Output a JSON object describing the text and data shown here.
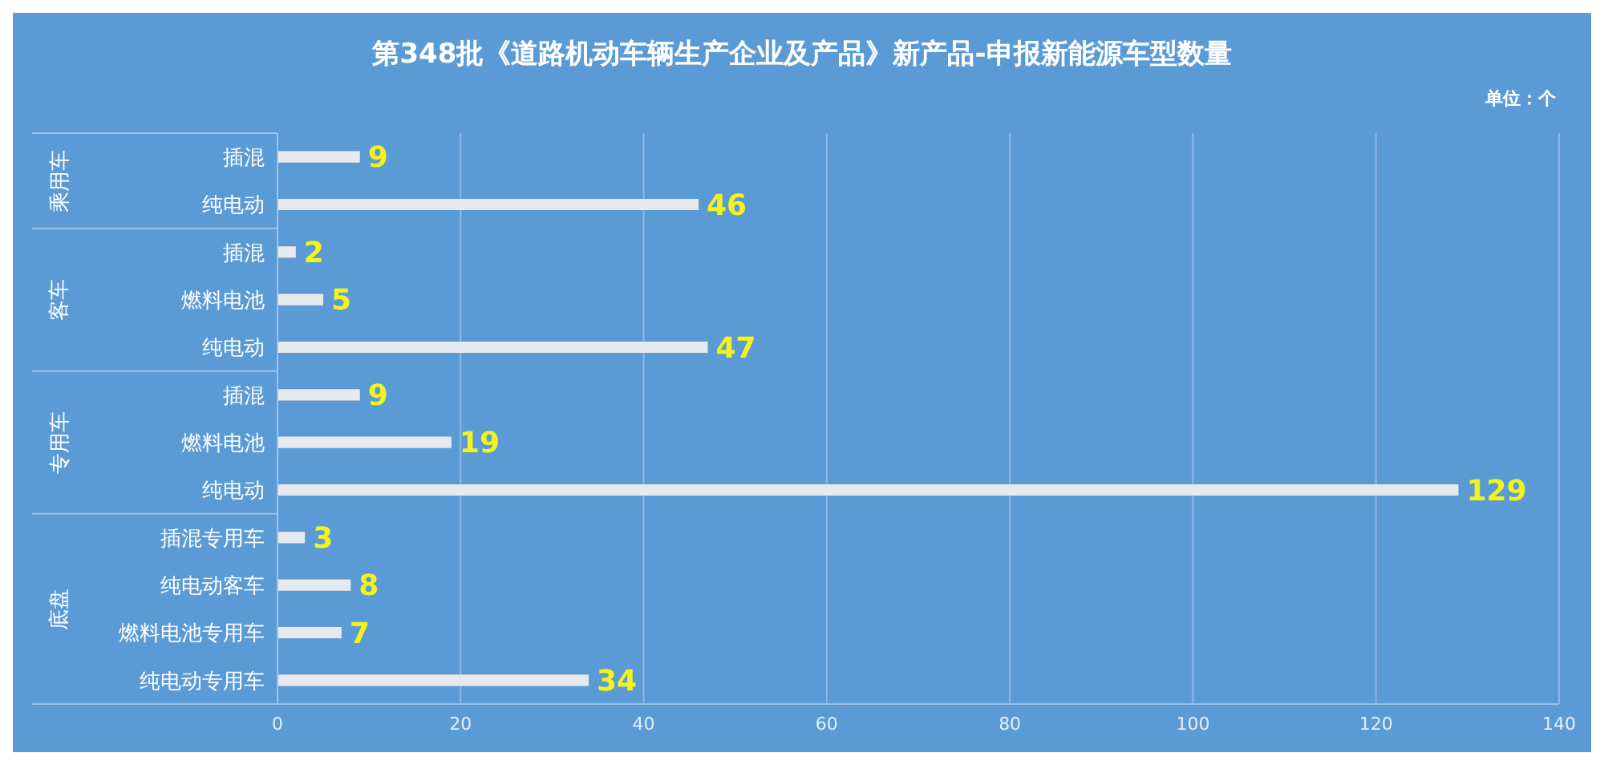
{
  "chart_data": {
    "type": "bar",
    "orientation": "horizontal",
    "title": "第348批《道路机动车辆生产企业及产品》新产品-申报新能源车型数量",
    "categories": [
      "插混",
      "纯电动",
      "插混",
      "燃料电池",
      "纯电动",
      "插混",
      "燃料电池",
      "纯电动",
      "插混专用车",
      "纯电动客车",
      "燃料电池专用车",
      "纯电动专用车"
    ],
    "values": [
      9,
      46,
      2,
      5,
      47,
      9,
      19,
      129,
      3,
      8,
      7,
      34
    ],
    "color": "#e6e9ee",
    "xlim": [
      0,
      140
    ],
    "xticks": [
      0,
      20,
      40,
      60,
      80,
      100,
      120,
      140
    ],
    "grid": "x",
    "data_labels": true,
    "annotations": [
      "单位：个",
      "乘用车",
      "客车",
      "专用车",
      "底盘"
    ]
  }
}
